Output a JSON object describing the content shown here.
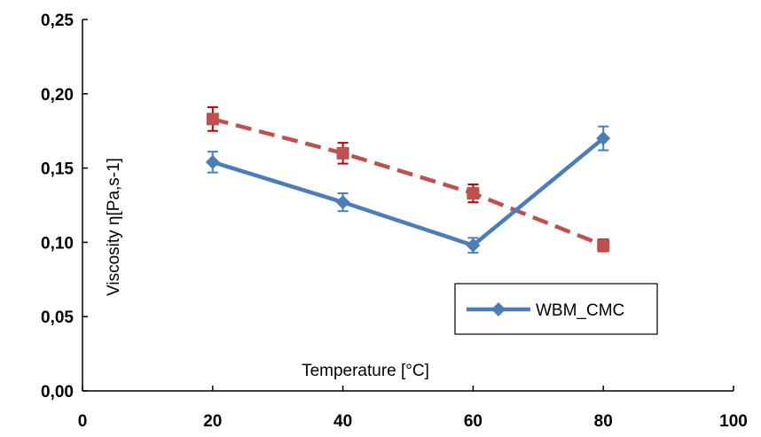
{
  "chart_data": {
    "type": "line",
    "title": "",
    "xlabel": "Temperature [°C]",
    "ylabel": "Viscosity η[Pa,s-1]",
    "xlim": [
      0,
      100
    ],
    "ylim": [
      0,
      0.25
    ],
    "x_ticks": [
      0,
      20,
      40,
      60,
      80,
      100
    ],
    "x_tick_labels": [
      "0",
      "20",
      "40",
      "60",
      "80",
      "100"
    ],
    "y_ticks": [
      0,
      0.05,
      0.1,
      0.15,
      0.2,
      0.25
    ],
    "y_tick_labels": [
      "0,00",
      "0,05",
      "0,10",
      "0,15",
      "0,20",
      "0,25"
    ],
    "grid": false,
    "legend_position": "bottom-right",
    "series": [
      {
        "name": "WBM_CMC",
        "color": "#4a7ebb",
        "line_style": "solid",
        "marker": "diamond",
        "show_in_legend": true,
        "x": [
          20,
          40,
          60,
          80
        ],
        "y": [
          0.154,
          0.127,
          0.098,
          0.17
        ],
        "error": [
          0.007,
          0.006,
          0.005,
          0.008
        ]
      },
      {
        "name": "",
        "color": "#c0504d",
        "error_color": "#c00000",
        "line_style": "dashed",
        "marker": "square",
        "show_in_legend": false,
        "x": [
          20,
          40,
          60,
          80
        ],
        "y": [
          0.183,
          0.16,
          0.133,
          0.098
        ],
        "error": [
          0.008,
          0.007,
          0.006,
          0.004
        ]
      }
    ]
  }
}
